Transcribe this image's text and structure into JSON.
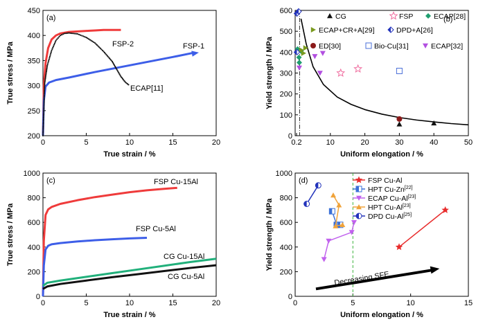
{
  "chart_data": [
    {
      "panel": "(a)",
      "type": "line",
      "xlabel": "True strain / %",
      "ylabel": "True stress / MPa",
      "xlim": [
        0,
        20
      ],
      "ylim": [
        200,
        450
      ],
      "xticks": [
        0,
        5,
        10,
        15,
        20
      ],
      "yticks": [
        200,
        250,
        300,
        350,
        400,
        450
      ],
      "grid": false,
      "series": [
        {
          "name": "FSP-2",
          "color": "#ef3b3b",
          "style": "line",
          "x": [
            0,
            0.1,
            0.3,
            0.6,
            1.0,
            1.5,
            2.0,
            3.0,
            4.0,
            5.0,
            6.0,
            7.0,
            8.0,
            9.0
          ],
          "y": [
            200,
            300,
            345,
            375,
            392,
            400,
            404,
            407,
            408,
            409,
            410,
            411,
            411,
            411
          ]
        },
        {
          "name": "FSP-1",
          "color": "#3d5ee8",
          "style": "line-arrow",
          "x": [
            0,
            0.1,
            0.3,
            0.7,
            1.5,
            3.0,
            6.0,
            9.0,
            12.0,
            15.0,
            18.0
          ],
          "y": [
            200,
            270,
            298,
            306,
            311,
            316,
            327,
            337,
            347,
            357,
            366
          ]
        },
        {
          "name": "ECAP[11]",
          "color": "#111111",
          "style": "dots",
          "x": [
            0,
            0.2,
            0.5,
            1.0,
            1.5,
            2.0,
            2.5,
            3.0,
            4.0,
            5.0,
            6.0,
            7.0,
            8.0,
            8.5,
            9.0,
            9.5,
            10.0
          ],
          "y": [
            200,
            305,
            340,
            370,
            390,
            400,
            404,
            405,
            403,
            396,
            385,
            368,
            348,
            333,
            318,
            307,
            300
          ]
        }
      ],
      "annotations": [
        "(a)",
        "FSP-2",
        "FSP-1",
        "ECAP[11]"
      ]
    },
    {
      "panel": "(b)",
      "type": "scatter",
      "xlabel": "Uniform elongation / %",
      "ylabel": "Yield strength / MPa",
      "xlim": [
        0,
        50
      ],
      "ylim": [
        0,
        600
      ],
      "xtick_labels": [
        "0.2",
        "10",
        "20",
        "30",
        "40",
        "50"
      ],
      "yticks": [
        0,
        100,
        200,
        300,
        400,
        500,
        600
      ],
      "grid": false,
      "legend_placement": "top",
      "series": [
        {
          "name": "CG",
          "marker": "triangle",
          "color": "#111111",
          "x": [
            30,
            40
          ],
          "y": [
            55,
            60
          ]
        },
        {
          "name": "FSP",
          "marker": "star-open",
          "color": "#f06ea0",
          "x": [
            13,
            18
          ],
          "y": [
            300,
            320
          ]
        },
        {
          "name": "ECAP[28]",
          "marker": "diamond",
          "color": "#1f9e6f",
          "x": [
            0.5,
            0.9,
            1.0,
            1.5
          ],
          "y": [
            415,
            375,
            350,
            405
          ]
        },
        {
          "name": "ECAP+CR+A[29]",
          "marker": "triangle-right",
          "color": "#7a9a1f",
          "x": [
            1.6,
            2.2,
            2.8
          ],
          "y": [
            410,
            395,
            420
          ]
        },
        {
          "name": "DPD+A[26]",
          "marker": "half-diamond",
          "color": "#2233bb",
          "x": [
            0.3,
            0.3,
            0.8
          ],
          "y": [
            585,
            400,
            595
          ]
        },
        {
          "name": "ED[30]",
          "marker": "circle",
          "color": "#8b1a1a",
          "x": [
            30
          ],
          "y": [
            80
          ]
        },
        {
          "name": "Bio-Cu[31]",
          "marker": "square-open",
          "color": "#4a6fd8",
          "x": [
            30
          ],
          "y": [
            310
          ]
        },
        {
          "name": "ECAP[32]",
          "marker": "triangle-down",
          "color": "#b24fe0",
          "x": [
            1.0,
            5.5,
            7.0,
            7.8
          ],
          "y": [
            325,
            380,
            300,
            395
          ]
        }
      ],
      "fit_curve": {
        "x": [
          1.5,
          3,
          5,
          8,
          12,
          16,
          20,
          25,
          30,
          35,
          40,
          45,
          50
        ],
        "y": [
          560,
          440,
          330,
          245,
          185,
          150,
          125,
          103,
          87,
          75,
          66,
          58,
          52
        ]
      },
      "vline_x": 1.1,
      "annotations": [
        "(b)"
      ]
    },
    {
      "panel": "(c)",
      "type": "line",
      "xlabel": "True strain  / %",
      "ylabel": "True stress / MPa",
      "xlim": [
        0,
        20
      ],
      "ylim": [
        0,
        1000
      ],
      "xticks": [
        0,
        5,
        10,
        15,
        20
      ],
      "yticks": [
        0,
        200,
        400,
        600,
        800,
        1000
      ],
      "grid": false,
      "series": [
        {
          "name": "FSP  Cu-15Al",
          "color": "#ef3b3b",
          "x": [
            0,
            0.1,
            0.3,
            0.6,
            1.0,
            2.0,
            4.0,
            6.0,
            8.0,
            10.0,
            12.0,
            14.0,
            15.5
          ],
          "y": [
            0,
            450,
            660,
            705,
            725,
            750,
            780,
            805,
            825,
            845,
            860,
            872,
            880
          ]
        },
        {
          "name": "FSP Cu-5Al",
          "color": "#3d5ee8",
          "x": [
            0,
            0.1,
            0.3,
            0.6,
            1.0,
            2.0,
            4.0,
            6.0,
            8.0,
            10.0,
            12.0
          ],
          "y": [
            0,
            250,
            380,
            410,
            422,
            432,
            445,
            455,
            463,
            470,
            475
          ]
        },
        {
          "name": "CG Cu-15Al",
          "color": "#21b07b",
          "x": [
            0,
            0.5,
            2,
            5,
            8,
            11,
            14,
            17,
            20
          ],
          "y": [
            85,
            110,
            128,
            158,
            188,
            218,
            248,
            278,
            305
          ]
        },
        {
          "name": "CG Cu-5Al",
          "color": "#111111",
          "x": [
            0,
            0.5,
            2,
            5,
            8,
            11,
            14,
            17,
            20
          ],
          "y": [
            60,
            80,
            100,
            128,
            155,
            180,
            205,
            230,
            252
          ]
        }
      ],
      "annotations": [
        "(c)"
      ]
    },
    {
      "panel": "(d)",
      "type": "line",
      "xlabel": "Uniform elongation / %",
      "ylabel": "Yield strength / MPa",
      "xlim": [
        0,
        15
      ],
      "ylim": [
        0,
        1000
      ],
      "xticks": [
        0,
        5,
        10,
        15
      ],
      "yticks": [
        0,
        200,
        400,
        600,
        800,
        1000
      ],
      "grid": false,
      "legend_placement": "top-right",
      "series": [
        {
          "name": "FSP Cu-Al",
          "color": "#e82c2c",
          "marker": "star",
          "x": [
            9,
            13
          ],
          "y": [
            400,
            700
          ]
        },
        {
          "name": "HPT Cu-Zn",
          "sup": "[22]",
          "color": "#3a70d8",
          "marker": "half-square",
          "x": [
            3.2,
            3.6,
            3.9
          ],
          "y": [
            690,
            580,
            580
          ]
        },
        {
          "name": "ECAP Cu-Al",
          "sup": "[23]",
          "color": "#c162ee",
          "marker": "triangle-down",
          "x": [
            2.5,
            2.9,
            4.9,
            5.1
          ],
          "y": [
            300,
            450,
            520,
            600
          ]
        },
        {
          "name": "HPT Cu-Al",
          "sup": "[23]",
          "color": "#f0a33a",
          "marker": "triangle-up",
          "x": [
            3.3,
            3.8,
            3.5,
            4.1
          ],
          "y": [
            820,
            740,
            570,
            580
          ]
        },
        {
          "name": "DPD Cu-Al",
          "sup": "[25]",
          "color": "#2233bb",
          "marker": "half-circle",
          "x": [
            1.0,
            2.0
          ],
          "y": [
            750,
            900
          ]
        }
      ],
      "vline_x": 5,
      "arrow_label": "Decreasing SFE",
      "annotations": [
        "(d)"
      ]
    }
  ]
}
